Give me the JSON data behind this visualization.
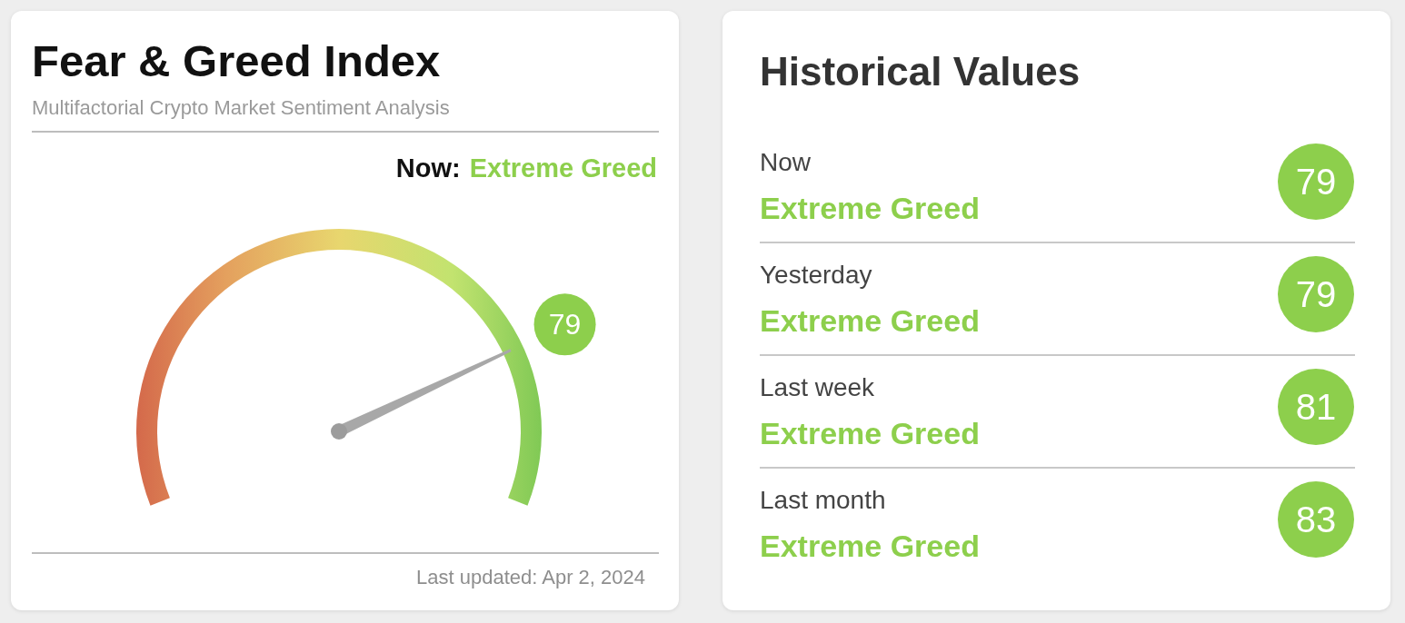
{
  "chart_data": [
    {
      "type": "other",
      "title": "Fear & Greed Index",
      "subtitle": "Multifactorial Crypto Market Sentiment Analysis",
      "values": [
        79
      ],
      "data_labels": true,
      "color": "#8dcf4c",
      "annotations": [
        "Now:",
        "Extreme Greed",
        "Last updated: Apr 2, 2024"
      ]
    },
    {
      "type": "other",
      "title": "Historical Values",
      "categories": [
        "Now",
        "Yesterday",
        "Last week",
        "Last month"
      ],
      "values": [
        79,
        79,
        81,
        83
      ],
      "data_labels": true,
      "color": "#8dcf4c",
      "annotations": [
        "Extreme Greed",
        "Extreme Greed",
        "Extreme Greed",
        "Extreme Greed"
      ]
    }
  ]
}
